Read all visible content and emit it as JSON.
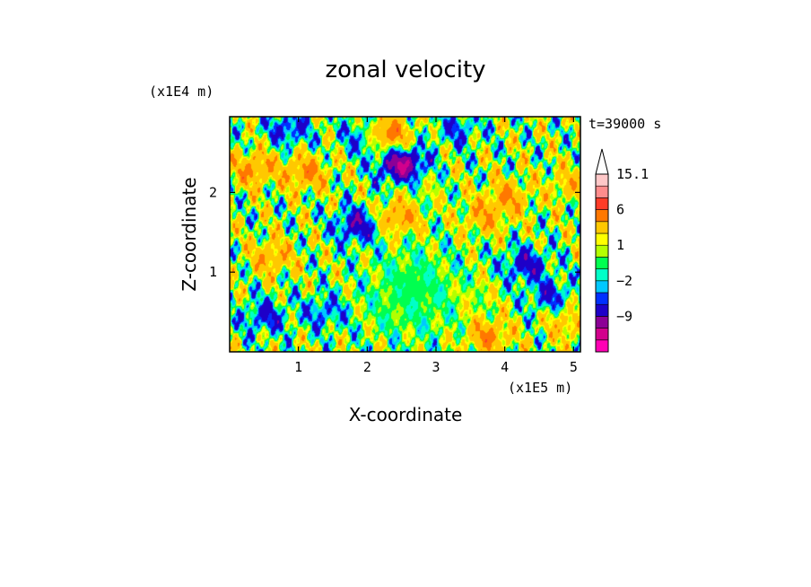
{
  "chart_data": {
    "type": "heatmap",
    "title": "zonal velocity",
    "xlabel": "X-coordinate",
    "ylabel": "Z-coordinate",
    "x_unit": "(x1E5 m)",
    "y_unit": "(x1E4 m)",
    "time_label": "t=39000 s",
    "xlim": [
      0,
      5.1
    ],
    "ylim": [
      0,
      2.95
    ],
    "x_ticks": [
      "1",
      "2",
      "3",
      "4",
      "5"
    ],
    "x_tick_values": [
      1,
      2,
      3,
      4,
      5
    ],
    "y_ticks": [
      "1",
      "2"
    ],
    "y_tick_values": [
      1,
      2
    ],
    "colorbar": {
      "levels": [
        -15,
        -12,
        -9,
        -6,
        -3,
        -2,
        -1,
        0,
        1,
        2,
        3,
        6,
        9,
        12,
        15.1
      ],
      "labels": [
        "15.1",
        "6",
        "1",
        "−2",
        "−9"
      ],
      "label_values": [
        15.1,
        6,
        1,
        -2,
        -9
      ],
      "colors": [
        "#ff00b4",
        "#d2008c",
        "#8c0096",
        "#1e00c8",
        "#0030ff",
        "#00c8ff",
        "#00ffc8",
        "#00ff50",
        "#b4ff00",
        "#ffff00",
        "#ffc800",
        "#ff7800",
        "#ff3c28",
        "#ff8c8c",
        "#ffc8c8"
      ],
      "extend_top": "white triangle"
    },
    "features": [
      {
        "x": 2.3,
        "z": 0.5,
        "u": 0.5
      },
      {
        "x": 2.6,
        "z": 0.9,
        "u": 0.4
      },
      {
        "x": 3.6,
        "z": 0.7,
        "u": 1.5
      },
      {
        "x": 2.5,
        "z": 2.35,
        "u": -10
      },
      {
        "x": 1.85,
        "z": 1.6,
        "u": -6
      },
      {
        "x": 1.95,
        "z": 2.7,
        "u": -4
      },
      {
        "x": 0.85,
        "z": 2.8,
        "u": -4
      },
      {
        "x": 4.3,
        "z": 1.1,
        "u": -5
      },
      {
        "x": 4.65,
        "z": 0.7,
        "u": -4
      },
      {
        "x": 0.5,
        "z": 0.45,
        "u": -4
      },
      {
        "x": 1.35,
        "z": 0.5,
        "u": -3
      },
      {
        "x": 3.75,
        "z": 0.2,
        "u": 6
      },
      {
        "x": 3.3,
        "z": 2.8,
        "u": -3
      },
      {
        "x": 2.3,
        "z": 2.75,
        "u": 7
      },
      {
        "x": 1.1,
        "z": 2.25,
        "u": 6
      },
      {
        "x": 0.35,
        "z": 2.3,
        "u": 6
      },
      {
        "x": 3.7,
        "z": 1.7,
        "u": 5
      },
      {
        "x": 4.05,
        "z": 1.95,
        "u": 5
      },
      {
        "x": 2.45,
        "z": 1.7,
        "u": 6
      },
      {
        "x": 0.6,
        "z": 1.2,
        "u": 5
      },
      {
        "x": 4.9,
        "z": 0.35,
        "u": 4
      },
      {
        "x": 4.95,
        "z": 2.1,
        "u": 4
      },
      {
        "x": 2.9,
        "z": 2.05,
        "u": 1
      }
    ]
  }
}
